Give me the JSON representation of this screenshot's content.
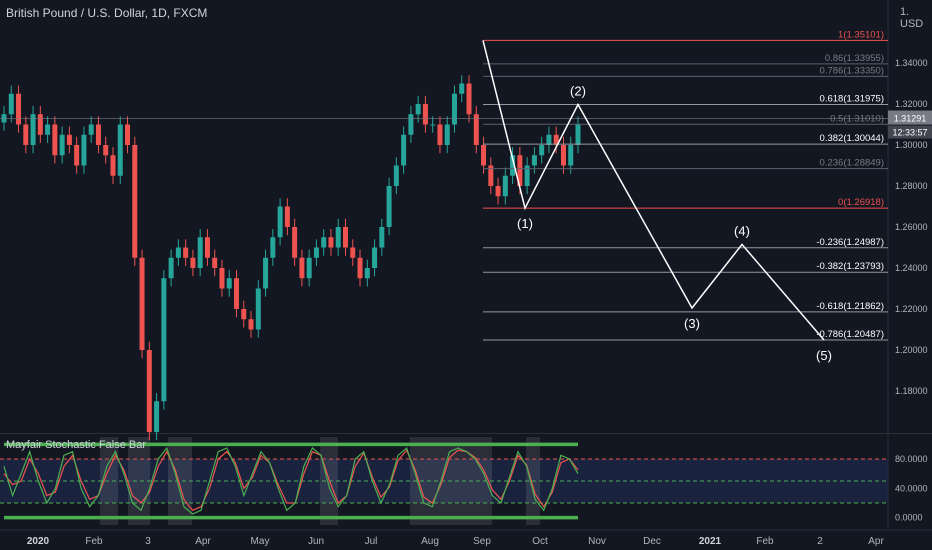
{
  "header": {
    "title": "British Pound / U.S. Dollar, 1D, FXCM",
    "currency": "1. USD"
  },
  "indicator": {
    "title": "Mayfair Stochastic False Bar"
  },
  "colors": {
    "background": "#131722",
    "up": "#26a69a",
    "down": "#ef5350",
    "fib_neutral": "#d1d4dc",
    "fib_red": "#ef5350",
    "projection": "#ffffff",
    "stoch_k": "#4caf50",
    "stoch_d": "#ef5350",
    "band": "#4caf50"
  },
  "chart_data": [
    {
      "type": "line",
      "name": "price",
      "ylim": [
        1.16,
        1.36
      ],
      "y_ticks": [
        "1.34000",
        "1.32000",
        "1.30000",
        "1.28000",
        "1.26000",
        "1.24000",
        "1.22000",
        "1.20000",
        "1.18000"
      ],
      "y_tick_values": [
        1.34,
        1.32,
        1.3,
        1.28,
        1.26,
        1.24,
        1.22,
        1.2,
        1.18
      ],
      "x_ticks": [
        "2020",
        "Feb",
        "3",
        "Apr",
        "May",
        "Jun",
        "Jul",
        "Aug",
        "Sep",
        "Oct",
        "Nov",
        "Dec",
        "2021",
        "Feb",
        "2",
        "Apr"
      ],
      "price_labels": {
        "last": "1.31291",
        "countdown": "12:33:57"
      },
      "close_series": [
        1.315,
        1.325,
        1.31,
        1.3,
        1.315,
        1.305,
        1.31,
        1.295,
        1.305,
        1.3,
        1.29,
        1.305,
        1.31,
        1.3,
        1.295,
        1.285,
        1.31,
        1.3,
        1.245,
        1.2,
        1.16,
        1.175,
        1.235,
        1.245,
        1.25,
        1.245,
        1.24,
        1.255,
        1.245,
        1.24,
        1.23,
        1.235,
        1.22,
        1.215,
        1.21,
        1.23,
        1.245,
        1.255,
        1.27,
        1.26,
        1.245,
        1.235,
        1.245,
        1.25,
        1.255,
        1.25,
        1.26,
        1.25,
        1.245,
        1.235,
        1.24,
        1.25,
        1.26,
        1.28,
        1.29,
        1.305,
        1.315,
        1.32,
        1.31,
        1.31,
        1.3,
        1.31,
        1.325,
        1.33,
        1.315,
        1.3,
        1.29,
        1.28,
        1.275,
        1.285,
        1.295,
        1.28,
        1.29,
        1.295,
        1.3,
        1.305,
        1.3,
        1.29,
        1.3,
        1.31
      ],
      "fib_levels": [
        {
          "label": "1(1.35101)",
          "value": 1.35101,
          "color": "red"
        },
        {
          "label": "0.86(1.33955)",
          "value": 1.33955,
          "color": "dim"
        },
        {
          "label": "0.786(1.33350)",
          "value": 1.3335,
          "color": "dim"
        },
        {
          "label": "0.618(1.31975)",
          "value": 1.31975,
          "color": "bright"
        },
        {
          "label": "0.5(1.31010)",
          "value": 1.3101,
          "color": "dim"
        },
        {
          "label": "0.382(1.30044)",
          "value": 1.30044,
          "color": "normal"
        },
        {
          "label": "0.236(1.28849)",
          "value": 1.28849,
          "color": "dim"
        },
        {
          "label": "0(1.26918)",
          "value": 1.26918,
          "color": "red"
        },
        {
          "label": "-0.236(1.24987)",
          "value": 1.24987,
          "color": "bright"
        },
        {
          "label": "-0.382(1.23793)",
          "value": 1.23793,
          "color": "bright"
        },
        {
          "label": "-0.618(1.21862)",
          "value": 1.21862,
          "color": "bright"
        },
        {
          "label": "-0.786(1.20487)",
          "value": 1.20487,
          "color": "bright"
        }
      ],
      "projection_points": [
        {
          "value": 1.35101,
          "label": ""
        },
        {
          "value": 1.26918,
          "label": "(1)"
        },
        {
          "value": 1.31975,
          "label": "(2)"
        },
        {
          "value": 1.2205,
          "label": "(3)"
        },
        {
          "value": 1.2515,
          "label": "(4)"
        },
        {
          "value": 1.20487,
          "label": "(5)"
        }
      ]
    },
    {
      "type": "line",
      "name": "stochastic",
      "ylim": [
        -10,
        110
      ],
      "y_ticks": [
        "80.0000",
        "40.0000",
        "0.0000"
      ],
      "y_tick_values": [
        80,
        40,
        0
      ],
      "levels": [
        80,
        50,
        20
      ],
      "bands": [
        100,
        0
      ],
      "k_series": [
        70,
        30,
        60,
        90,
        50,
        20,
        40,
        85,
        90,
        40,
        15,
        30,
        70,
        90,
        60,
        20,
        10,
        40,
        80,
        95,
        60,
        15,
        5,
        10,
        50,
        90,
        95,
        70,
        30,
        60,
        90,
        75,
        40,
        10,
        20,
        70,
        95,
        85,
        40,
        15,
        30,
        80,
        90,
        50,
        20,
        45,
        85,
        95,
        60,
        20,
        15,
        50,
        90,
        95,
        90,
        80,
        60,
        30,
        20,
        55,
        90,
        70,
        25,
        10,
        40,
        85,
        80,
        60
      ],
      "d_series": [
        60,
        45,
        50,
        80,
        60,
        30,
        35,
        70,
        85,
        50,
        25,
        30,
        60,
        85,
        65,
        30,
        20,
        35,
        70,
        90,
        65,
        25,
        10,
        15,
        40,
        80,
        90,
        75,
        40,
        55,
        85,
        75,
        45,
        20,
        20,
        60,
        90,
        85,
        50,
        20,
        30,
        70,
        88,
        55,
        28,
        42,
        78,
        92,
        65,
        28,
        20,
        45,
        82,
        92,
        90,
        82,
        65,
        38,
        25,
        50,
        85,
        72,
        32,
        15,
        35,
        75,
        80,
        65
      ]
    }
  ]
}
